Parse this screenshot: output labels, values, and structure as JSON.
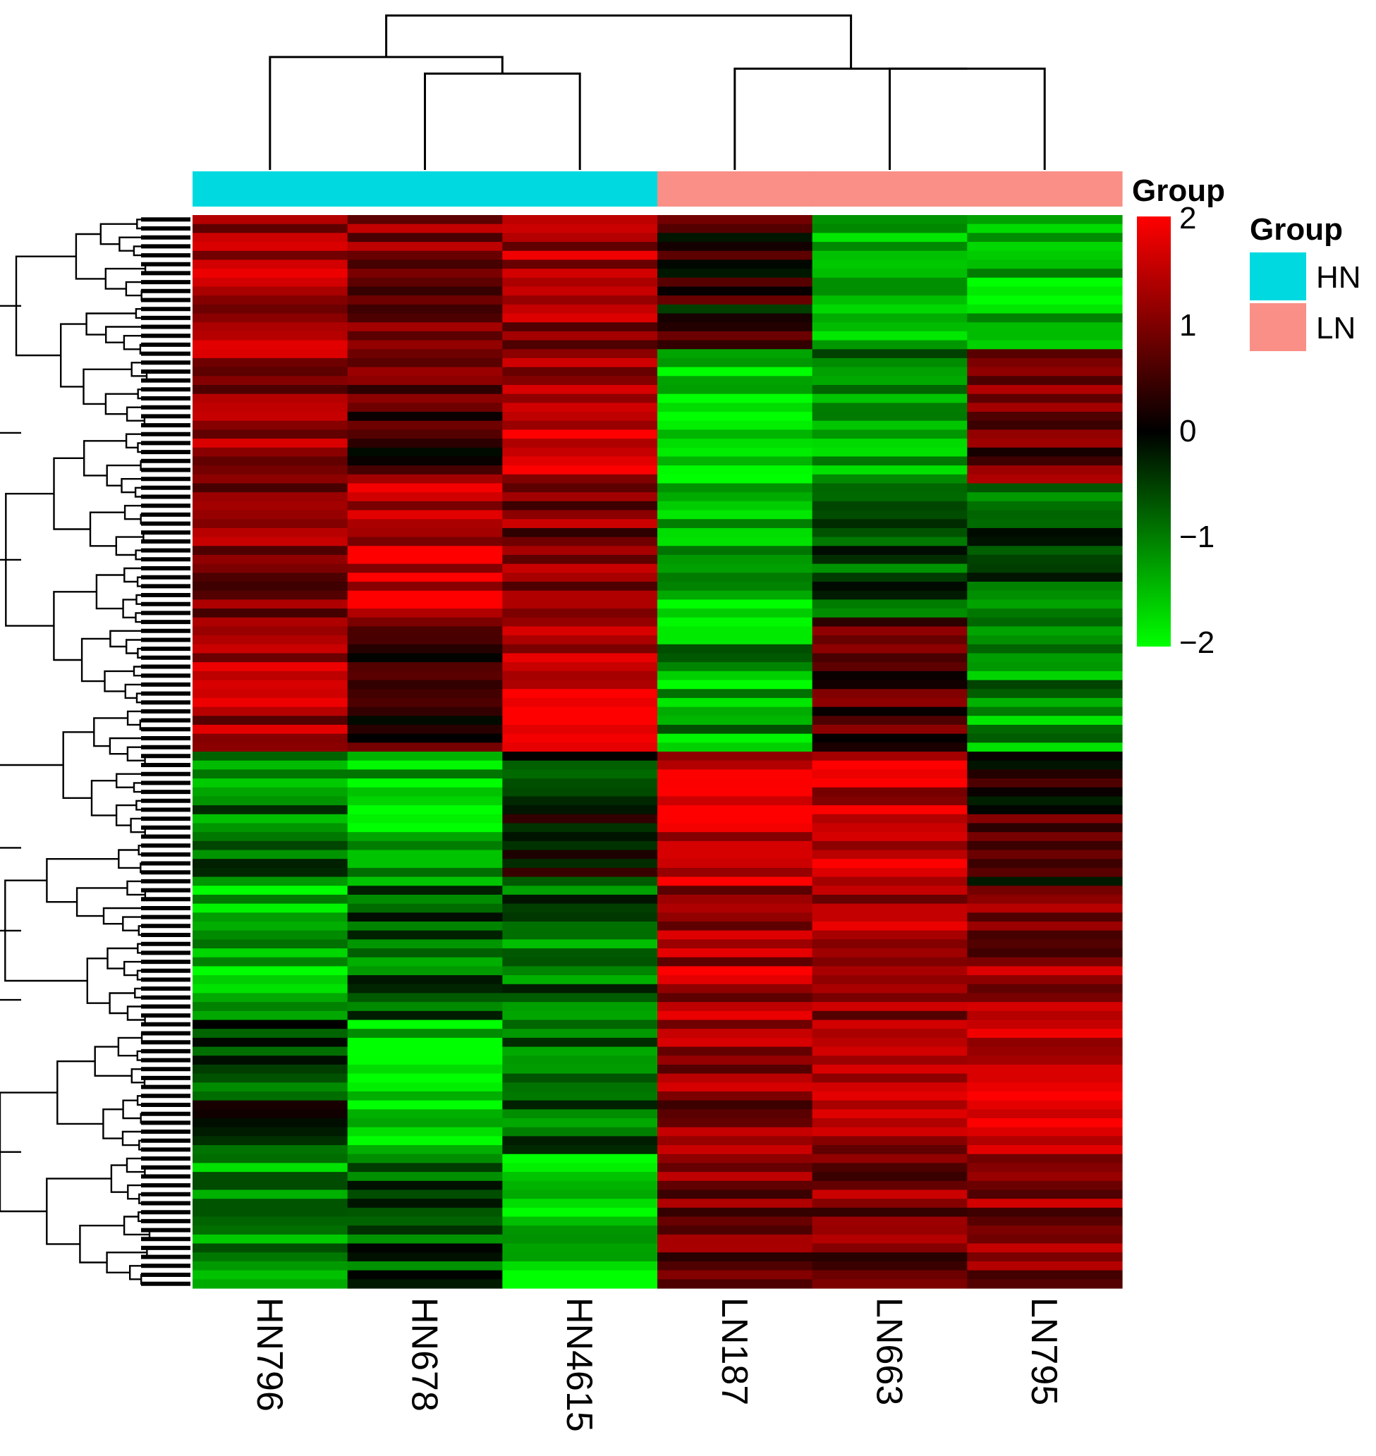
{
  "chart_data": {
    "type": "heatmap",
    "columns": [
      "HN796",
      "HN678",
      "HN4615",
      "LN187",
      "LN663",
      "LN795"
    ],
    "column_groups": [
      "HN",
      "HN",
      "HN",
      "LN",
      "LN",
      "LN"
    ],
    "annotation": {
      "title": "Group",
      "legend_title": "Group",
      "levels": [
        {
          "name": "HN",
          "color": "#00d9e0"
        },
        {
          "name": "LN",
          "color": "#f98f86"
        }
      ]
    },
    "color_scale": {
      "min": -2,
      "max": 2,
      "ticks": [
        "2",
        "1",
        "0",
        "−1",
        "−2"
      ],
      "tick_values": [
        2,
        1,
        0,
        -1,
        -2
      ],
      "low_color": "#00ff00",
      "mid_color": "#000000",
      "high_color": "#ff0000"
    },
    "row_count": 120,
    "block_profiles": [
      {
        "rows": 15,
        "means": [
          1.2,
          1.0,
          1.3,
          0.2,
          -1.4,
          -1.5
        ]
      },
      {
        "rows": 15,
        "means": [
          1.3,
          0.6,
          1.4,
          -1.7,
          -1.2,
          0.7
        ]
      },
      {
        "rows": 15,
        "means": [
          0.9,
          1.6,
          1.0,
          -1.6,
          -0.5,
          -0.7
        ]
      },
      {
        "rows": 15,
        "means": [
          1.2,
          0.4,
          1.6,
          -1.3,
          0.7,
          -1.2
        ]
      },
      {
        "rows": 15,
        "means": [
          -0.9,
          -1.5,
          -0.2,
          1.7,
          1.6,
          0.4
        ]
      },
      {
        "rows": 15,
        "means": [
          -1.5,
          -0.7,
          -0.8,
          1.4,
          1.2,
          1.2
        ]
      },
      {
        "rows": 15,
        "means": [
          -0.4,
          -1.6,
          -0.9,
          1.0,
          1.1,
          1.4
        ]
      },
      {
        "rows": 15,
        "means": [
          -1.2,
          -0.5,
          -1.8,
          1.0,
          1.0,
          1.0
        ]
      }
    ],
    "column_dendrogram": {
      "merges": [
        [
          1,
          2,
          0.58
        ],
        [
          4,
          5,
          0.61
        ],
        [
          0,
          -1,
          0.68
        ],
        [
          3,
          -2,
          0.61
        ],
        [
          -3,
          -4,
          0.93
        ]
      ]
    }
  }
}
